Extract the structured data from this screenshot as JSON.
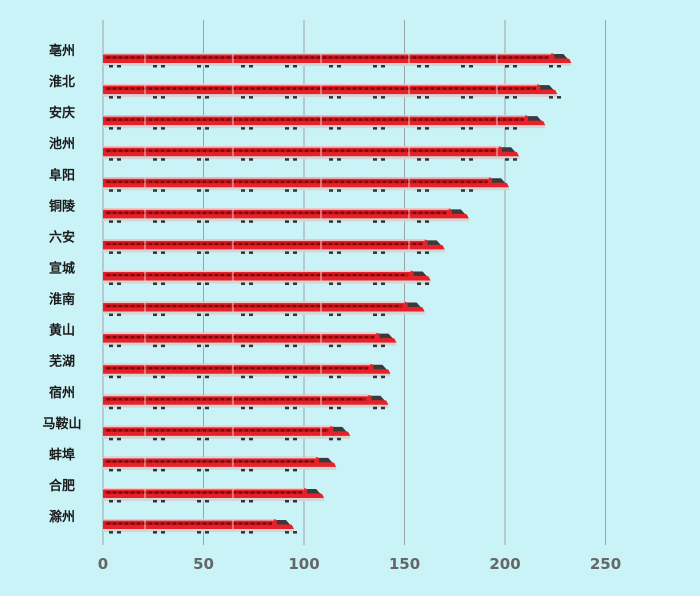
{
  "chart_data": {
    "type": "bar",
    "orientation": "horizontal",
    "categories": [
      "亳州",
      "淮北",
      "安庆",
      "池州",
      "阜阳",
      "铜陵",
      "六安",
      "宣城",
      "淮南",
      "黄山",
      "芜湖",
      "宿州",
      "马鞍山",
      "蚌埠",
      "合肥",
      "滁州"
    ],
    "values": [
      233,
      226,
      220,
      207,
      202,
      182,
      170,
      163,
      160,
      146,
      143,
      142,
      123,
      116,
      110,
      95
    ],
    "x_ticks": [
      "0",
      "50",
      "100",
      "150",
      "200",
      "250"
    ],
    "xlim": [
      0,
      250
    ],
    "grid": true,
    "colors": {
      "body": "#e62129",
      "stripe": "#b81418",
      "window": "#5c0d10",
      "base": "#d4d4d4",
      "background": "#c9f3f7"
    }
  }
}
